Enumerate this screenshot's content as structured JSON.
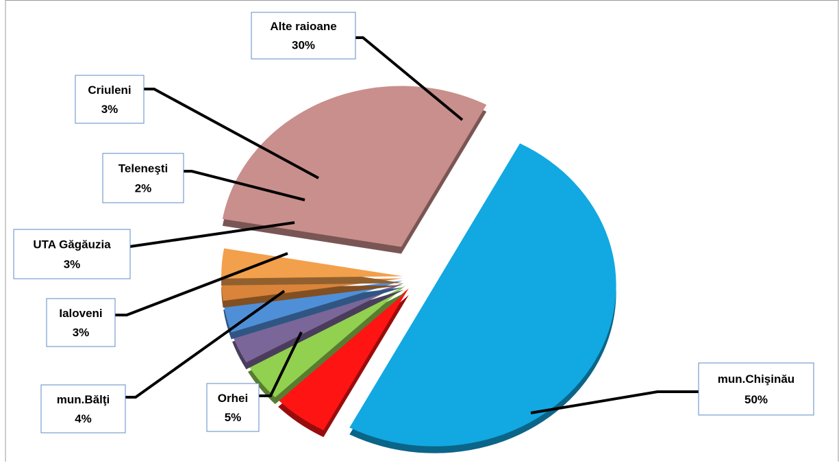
{
  "chart_data": {
    "type": "pie",
    "categories": [
      "mun.Chişinău",
      "Orhei",
      "mun.Bălţi",
      "Ialoveni",
      "UTA Găgăuzia",
      "Teleneşti",
      "Criuleni",
      "Alte raioane"
    ],
    "values": [
      50,
      5,
      4,
      3,
      3,
      2,
      3,
      30
    ],
    "value_labels": [
      "50%",
      "5%",
      "4%",
      "3%",
      "3%",
      "2%",
      "3%",
      "30%"
    ],
    "colors": [
      "#12a8e2",
      "#ff1414",
      "#92d050",
      "#7b6699",
      "#4f8fd8",
      "#d9843a",
      "#f2a04c",
      "#c98f8c"
    ]
  }
}
